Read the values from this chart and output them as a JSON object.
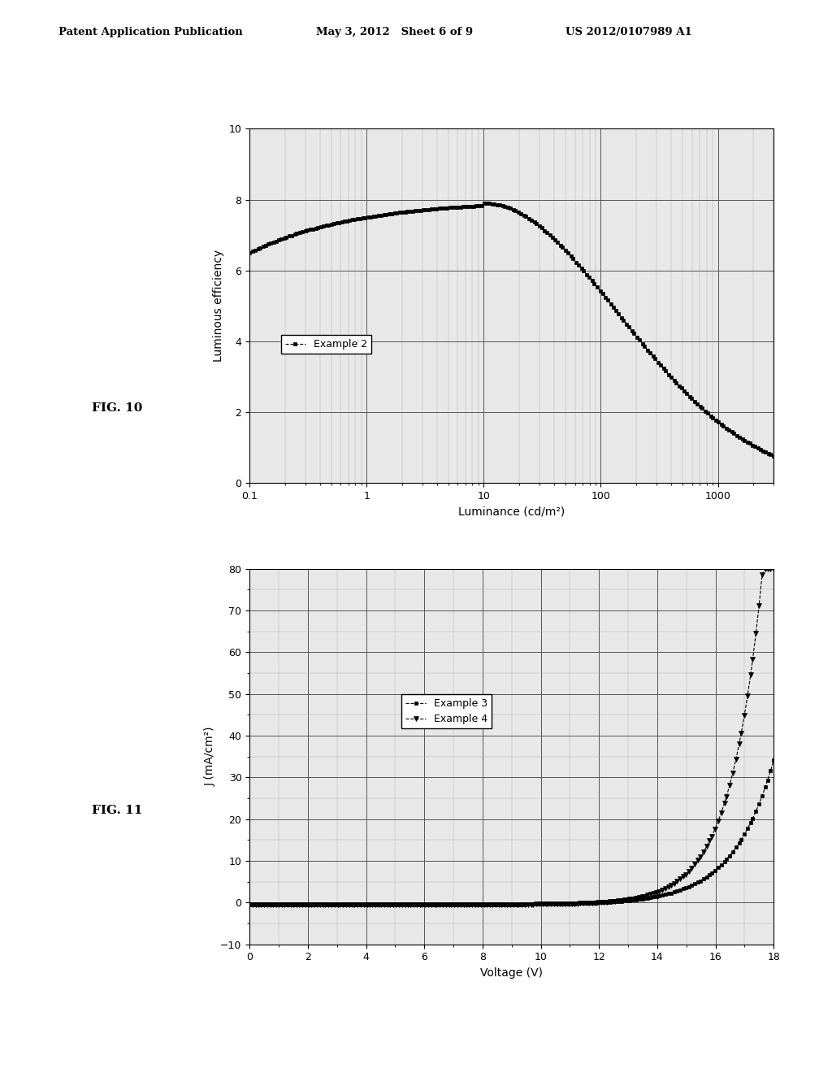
{
  "header_left": "Patent Application Publication",
  "header_center": "May 3, 2012   Sheet 6 of 9",
  "header_right": "US 2012/0107989 A1",
  "fig10_label": "FIG. 10",
  "fig11_label": "FIG. 11",
  "plot1": {
    "xlabel": "Luminance (cd/m²)",
    "ylabel": "Luminous efficiency",
    "xlim_log": [
      0.1,
      3000
    ],
    "ylim": [
      0,
      10
    ],
    "yticks": [
      0,
      2,
      4,
      6,
      8,
      10
    ],
    "xtick_labels": [
      "0.1",
      "1",
      "10",
      "100",
      "1000"
    ],
    "xtick_vals": [
      0.1,
      1,
      10,
      100,
      1000
    ],
    "legend_label": "Example 2",
    "curve_color": "#000000",
    "marker": "s",
    "bg_color": "#e8e8e8"
  },
  "plot2": {
    "xlabel": "Voltage (V)",
    "ylabel": "J (mA/cm²)",
    "xlim": [
      0,
      18
    ],
    "ylim": [
      -10,
      80
    ],
    "xticks": [
      0,
      2,
      4,
      6,
      8,
      10,
      12,
      14,
      16,
      18
    ],
    "yticks": [
      -10,
      0,
      10,
      20,
      30,
      40,
      50,
      60,
      70,
      80
    ],
    "legend_label_3": "Example 3",
    "legend_label_4": "Example 4",
    "color3": "#000000",
    "color4": "#000000",
    "marker3": "s",
    "marker4": "v",
    "bg_color": "#e8e8e8"
  },
  "background_color": "#ffffff",
  "text_color": "#000000"
}
